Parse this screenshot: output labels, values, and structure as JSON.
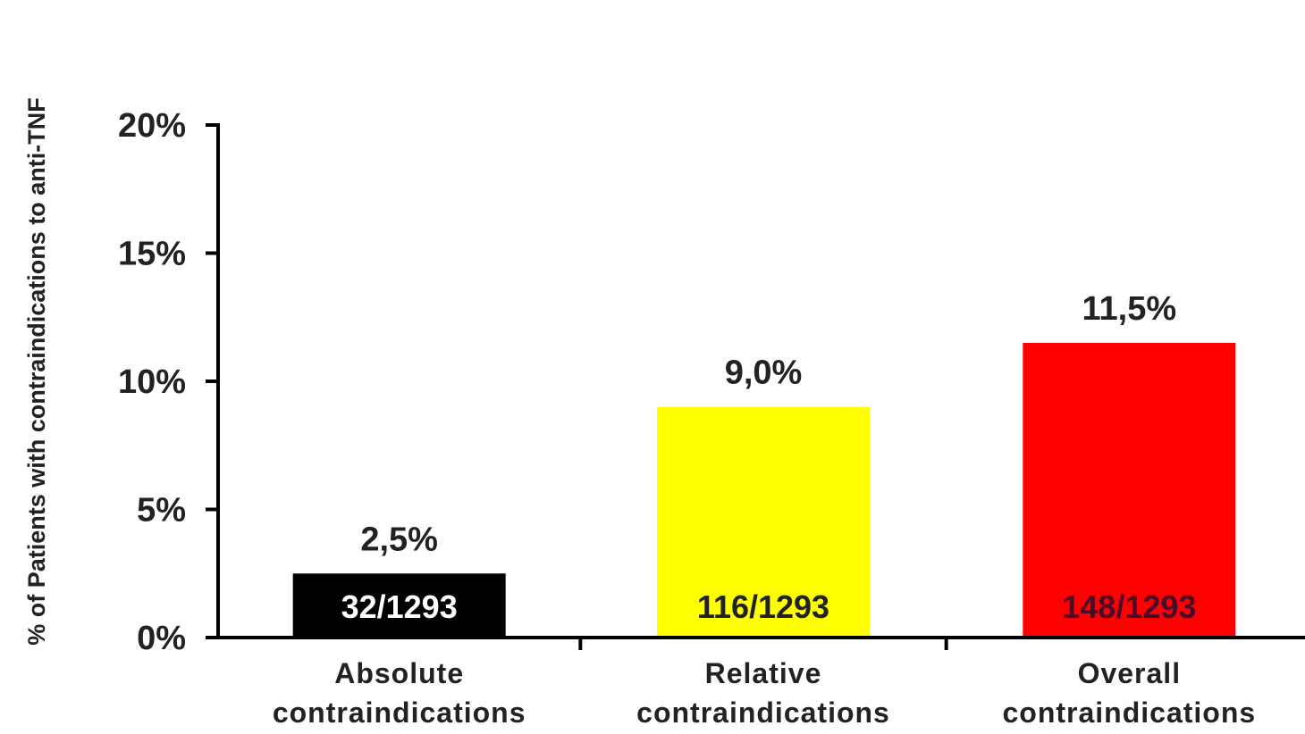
{
  "chart_data": {
    "type": "bar",
    "title": "",
    "xlabel": "",
    "ylabel": "% of Patients with contraindications to anti-TNF",
    "ylim": [
      0,
      20
    ],
    "yticks": [
      0,
      5,
      10,
      15,
      20
    ],
    "ytick_labels": [
      "0%",
      "5%",
      "10%",
      "15%",
      "20%"
    ],
    "grid": false,
    "categories": [
      [
        "Absolute",
        "contraindications"
      ],
      [
        "Relative",
        "contraindications"
      ],
      [
        "Overall",
        "contraindications"
      ]
    ],
    "values": [
      2.5,
      9.0,
      11.5
    ],
    "value_labels": [
      "2,5%",
      "9,0%",
      "11,5%"
    ],
    "count_labels": [
      "32/1293",
      "116/1293",
      "148/1293"
    ],
    "bar_colors": [
      "#000000",
      "#ffff00",
      "#ff0000"
    ],
    "count_label_colors": [
      "#ffffff",
      "#222222",
      "#4a0a2a"
    ]
  }
}
